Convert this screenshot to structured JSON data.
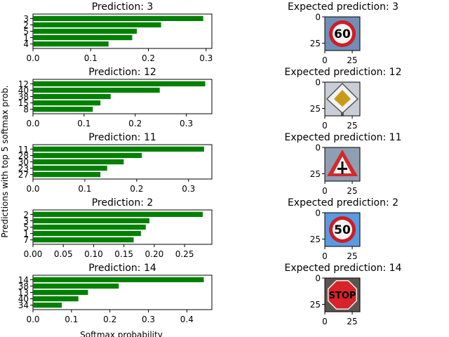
{
  "figure": {
    "ylabel": "Predictions with top 5 softmax prob.",
    "xlabel": "Softmax probability"
  },
  "chart_data": [
    {
      "type": "bar",
      "orientation": "horizontal",
      "title": "Prediction: 3",
      "categories": [
        "3",
        "2",
        "5",
        "1",
        "4"
      ],
      "values": [
        0.295,
        0.222,
        0.18,
        0.172,
        0.131
      ],
      "color": "#008000",
      "xlim": [
        0,
        0.31
      ],
      "xticks": [
        0,
        0.1,
        0.2,
        0.3
      ],
      "xtick_labels": [
        "0.0",
        "0.1",
        "0.2",
        "0.3"
      ],
      "image": {
        "title": "Expected prediction: 3",
        "sign": "speed-limit-60",
        "sign_text": "60",
        "xticks": [
          "0",
          "25"
        ],
        "yticks": [
          "0",
          "25"
        ]
      }
    },
    {
      "type": "bar",
      "orientation": "horizontal",
      "title": "Prediction: 12",
      "categories": [
        "12",
        "40",
        "38",
        "15",
        "8"
      ],
      "values": [
        0.337,
        0.248,
        0.152,
        0.132,
        0.117
      ],
      "color": "#008000",
      "xlim": [
        0,
        0.35
      ],
      "xticks": [
        0,
        0.1,
        0.2,
        0.3
      ],
      "xtick_labels": [
        "0.0",
        "0.1",
        "0.2",
        "0.3"
      ],
      "image": {
        "title": "Expected prediction: 12",
        "sign": "priority-road",
        "sign_text": "",
        "xticks": [
          "0",
          "25"
        ],
        "yticks": [
          "0",
          "25"
        ]
      }
    },
    {
      "type": "bar",
      "orientation": "horizontal",
      "title": "Prediction: 11",
      "categories": [
        "11",
        "28",
        "30",
        "23",
        "27"
      ],
      "values": [
        0.33,
        0.21,
        0.175,
        0.143,
        0.13
      ],
      "color": "#008000",
      "xlim": [
        0,
        0.345
      ],
      "xticks": [
        0,
        0.1,
        0.2,
        0.3
      ],
      "xtick_labels": [
        "0.0",
        "0.1",
        "0.2",
        "0.3"
      ],
      "image": {
        "title": "Expected prediction: 11",
        "sign": "right-of-way",
        "sign_text": "",
        "xticks": [
          "0",
          "25"
        ],
        "yticks": [
          "0",
          "25"
        ]
      }
    },
    {
      "type": "bar",
      "orientation": "horizontal",
      "title": "Prediction: 2",
      "categories": [
        "2",
        "3",
        "5",
        "1",
        "7"
      ],
      "values": [
        0.28,
        0.192,
        0.186,
        0.178,
        0.166
      ],
      "color": "#008000",
      "xlim": [
        0,
        0.295
      ],
      "xticks": [
        0,
        0.05,
        0.1,
        0.15,
        0.2,
        0.25
      ],
      "xtick_labels": [
        "0.00",
        "0.05",
        "0.10",
        "0.15",
        "0.20",
        "0.25"
      ],
      "image": {
        "title": "Expected prediction: 2",
        "sign": "speed-limit-50",
        "sign_text": "50",
        "xticks": [
          "0",
          "25"
        ],
        "yticks": [
          "0",
          "25"
        ]
      }
    },
    {
      "type": "bar",
      "orientation": "horizontal",
      "title": "Prediction: 14",
      "categories": [
        "14",
        "38",
        "13",
        "40",
        "34"
      ],
      "values": [
        0.444,
        0.223,
        0.143,
        0.118,
        0.075
      ],
      "color": "#008000",
      "xlim": [
        0,
        0.465
      ],
      "xticks": [
        0,
        0.1,
        0.2,
        0.3,
        0.4
      ],
      "xtick_labels": [
        "0.0",
        "0.1",
        "0.2",
        "0.3",
        "0.4"
      ],
      "image": {
        "title": "Expected prediction: 14",
        "sign": "stop",
        "sign_text": "STOP",
        "xticks": [
          "0",
          "25"
        ],
        "yticks": [
          "0",
          "25"
        ]
      }
    }
  ]
}
